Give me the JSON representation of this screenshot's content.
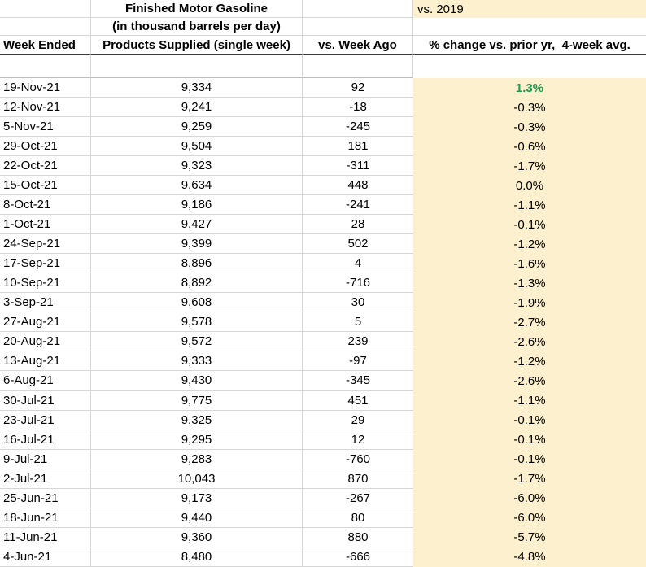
{
  "colors": {
    "highlight_bg": "#fdf0ce",
    "positive_green": "#1a9b50",
    "gridline": "#d6d6d6",
    "gridline_mid": "#bdbdbd",
    "header_border": "#3c3c3c",
    "text": "#000000"
  },
  "header": {
    "title_line1": "Finished Motor Gasoline",
    "title_line2": "(in thousand barrels per day)",
    "vs_2019_label": "vs. 2019",
    "columns": [
      "Week Ended",
      "Products Supplied (single week)",
      "vs. Week Ago",
      "% change vs. prior yr,  4-week avg."
    ]
  },
  "table": {
    "rows": [
      {
        "week_ended": "19-Nov-21",
        "products_supplied": "9,334",
        "vs_week_ago": "92",
        "pct_change": "1.3%",
        "positive": true
      },
      {
        "week_ended": "12-Nov-21",
        "products_supplied": "9,241",
        "vs_week_ago": "-18",
        "pct_change": "-0.3%",
        "positive": false
      },
      {
        "week_ended": "5-Nov-21",
        "products_supplied": "9,259",
        "vs_week_ago": "-245",
        "pct_change": "-0.3%",
        "positive": false
      },
      {
        "week_ended": "29-Oct-21",
        "products_supplied": "9,504",
        "vs_week_ago": "181",
        "pct_change": "-0.6%",
        "positive": false
      },
      {
        "week_ended": "22-Oct-21",
        "products_supplied": "9,323",
        "vs_week_ago": "-311",
        "pct_change": "-1.7%",
        "positive": false
      },
      {
        "week_ended": "15-Oct-21",
        "products_supplied": "9,634",
        "vs_week_ago": "448",
        "pct_change": "0.0%",
        "positive": false
      },
      {
        "week_ended": "8-Oct-21",
        "products_supplied": "9,186",
        "vs_week_ago": "-241",
        "pct_change": "-1.1%",
        "positive": false
      },
      {
        "week_ended": "1-Oct-21",
        "products_supplied": "9,427",
        "vs_week_ago": "28",
        "pct_change": "-0.1%",
        "positive": false
      },
      {
        "week_ended": "24-Sep-21",
        "products_supplied": "9,399",
        "vs_week_ago": "502",
        "pct_change": "-1.2%",
        "positive": false
      },
      {
        "week_ended": "17-Sep-21",
        "products_supplied": "8,896",
        "vs_week_ago": "4",
        "pct_change": "-1.6%",
        "positive": false
      },
      {
        "week_ended": "10-Sep-21",
        "products_supplied": "8,892",
        "vs_week_ago": "-716",
        "pct_change": "-1.3%",
        "positive": false
      },
      {
        "week_ended": "3-Sep-21",
        "products_supplied": "9,608",
        "vs_week_ago": "30",
        "pct_change": "-1.9%",
        "positive": false
      },
      {
        "week_ended": "27-Aug-21",
        "products_supplied": "9,578",
        "vs_week_ago": "5",
        "pct_change": "-2.7%",
        "positive": false
      },
      {
        "week_ended": "20-Aug-21",
        "products_supplied": "9,572",
        "vs_week_ago": "239",
        "pct_change": "-2.6%",
        "positive": false
      },
      {
        "week_ended": "13-Aug-21",
        "products_supplied": "9,333",
        "vs_week_ago": "-97",
        "pct_change": "-1.2%",
        "positive": false
      },
      {
        "week_ended": "6-Aug-21",
        "products_supplied": "9,430",
        "vs_week_ago": "-345",
        "pct_change": "-2.6%",
        "positive": false
      },
      {
        "week_ended": "30-Jul-21",
        "products_supplied": "9,775",
        "vs_week_ago": "451",
        "pct_change": "-1.1%",
        "positive": false
      },
      {
        "week_ended": "23-Jul-21",
        "products_supplied": "9,325",
        "vs_week_ago": "29",
        "pct_change": "-0.1%",
        "positive": false
      },
      {
        "week_ended": "16-Jul-21",
        "products_supplied": "9,295",
        "vs_week_ago": "12",
        "pct_change": "-0.1%",
        "positive": false
      },
      {
        "week_ended": "9-Jul-21",
        "products_supplied": "9,283",
        "vs_week_ago": "-760",
        "pct_change": "-0.1%",
        "positive": false
      },
      {
        "week_ended": "2-Jul-21",
        "products_supplied": "10,043",
        "vs_week_ago": "870",
        "pct_change": "-1.7%",
        "positive": false
      },
      {
        "week_ended": "25-Jun-21",
        "products_supplied": "9,173",
        "vs_week_ago": "-267",
        "pct_change": "-6.0%",
        "positive": false
      },
      {
        "week_ended": "18-Jun-21",
        "products_supplied": "9,440",
        "vs_week_ago": "80",
        "pct_change": "-6.0%",
        "positive": false
      },
      {
        "week_ended": "11-Jun-21",
        "products_supplied": "9,360",
        "vs_week_ago": "880",
        "pct_change": "-5.7%",
        "positive": false
      },
      {
        "week_ended": "4-Jun-21",
        "products_supplied": "8,480",
        "vs_week_ago": "-666",
        "pct_change": "-4.8%",
        "positive": false
      }
    ]
  }
}
